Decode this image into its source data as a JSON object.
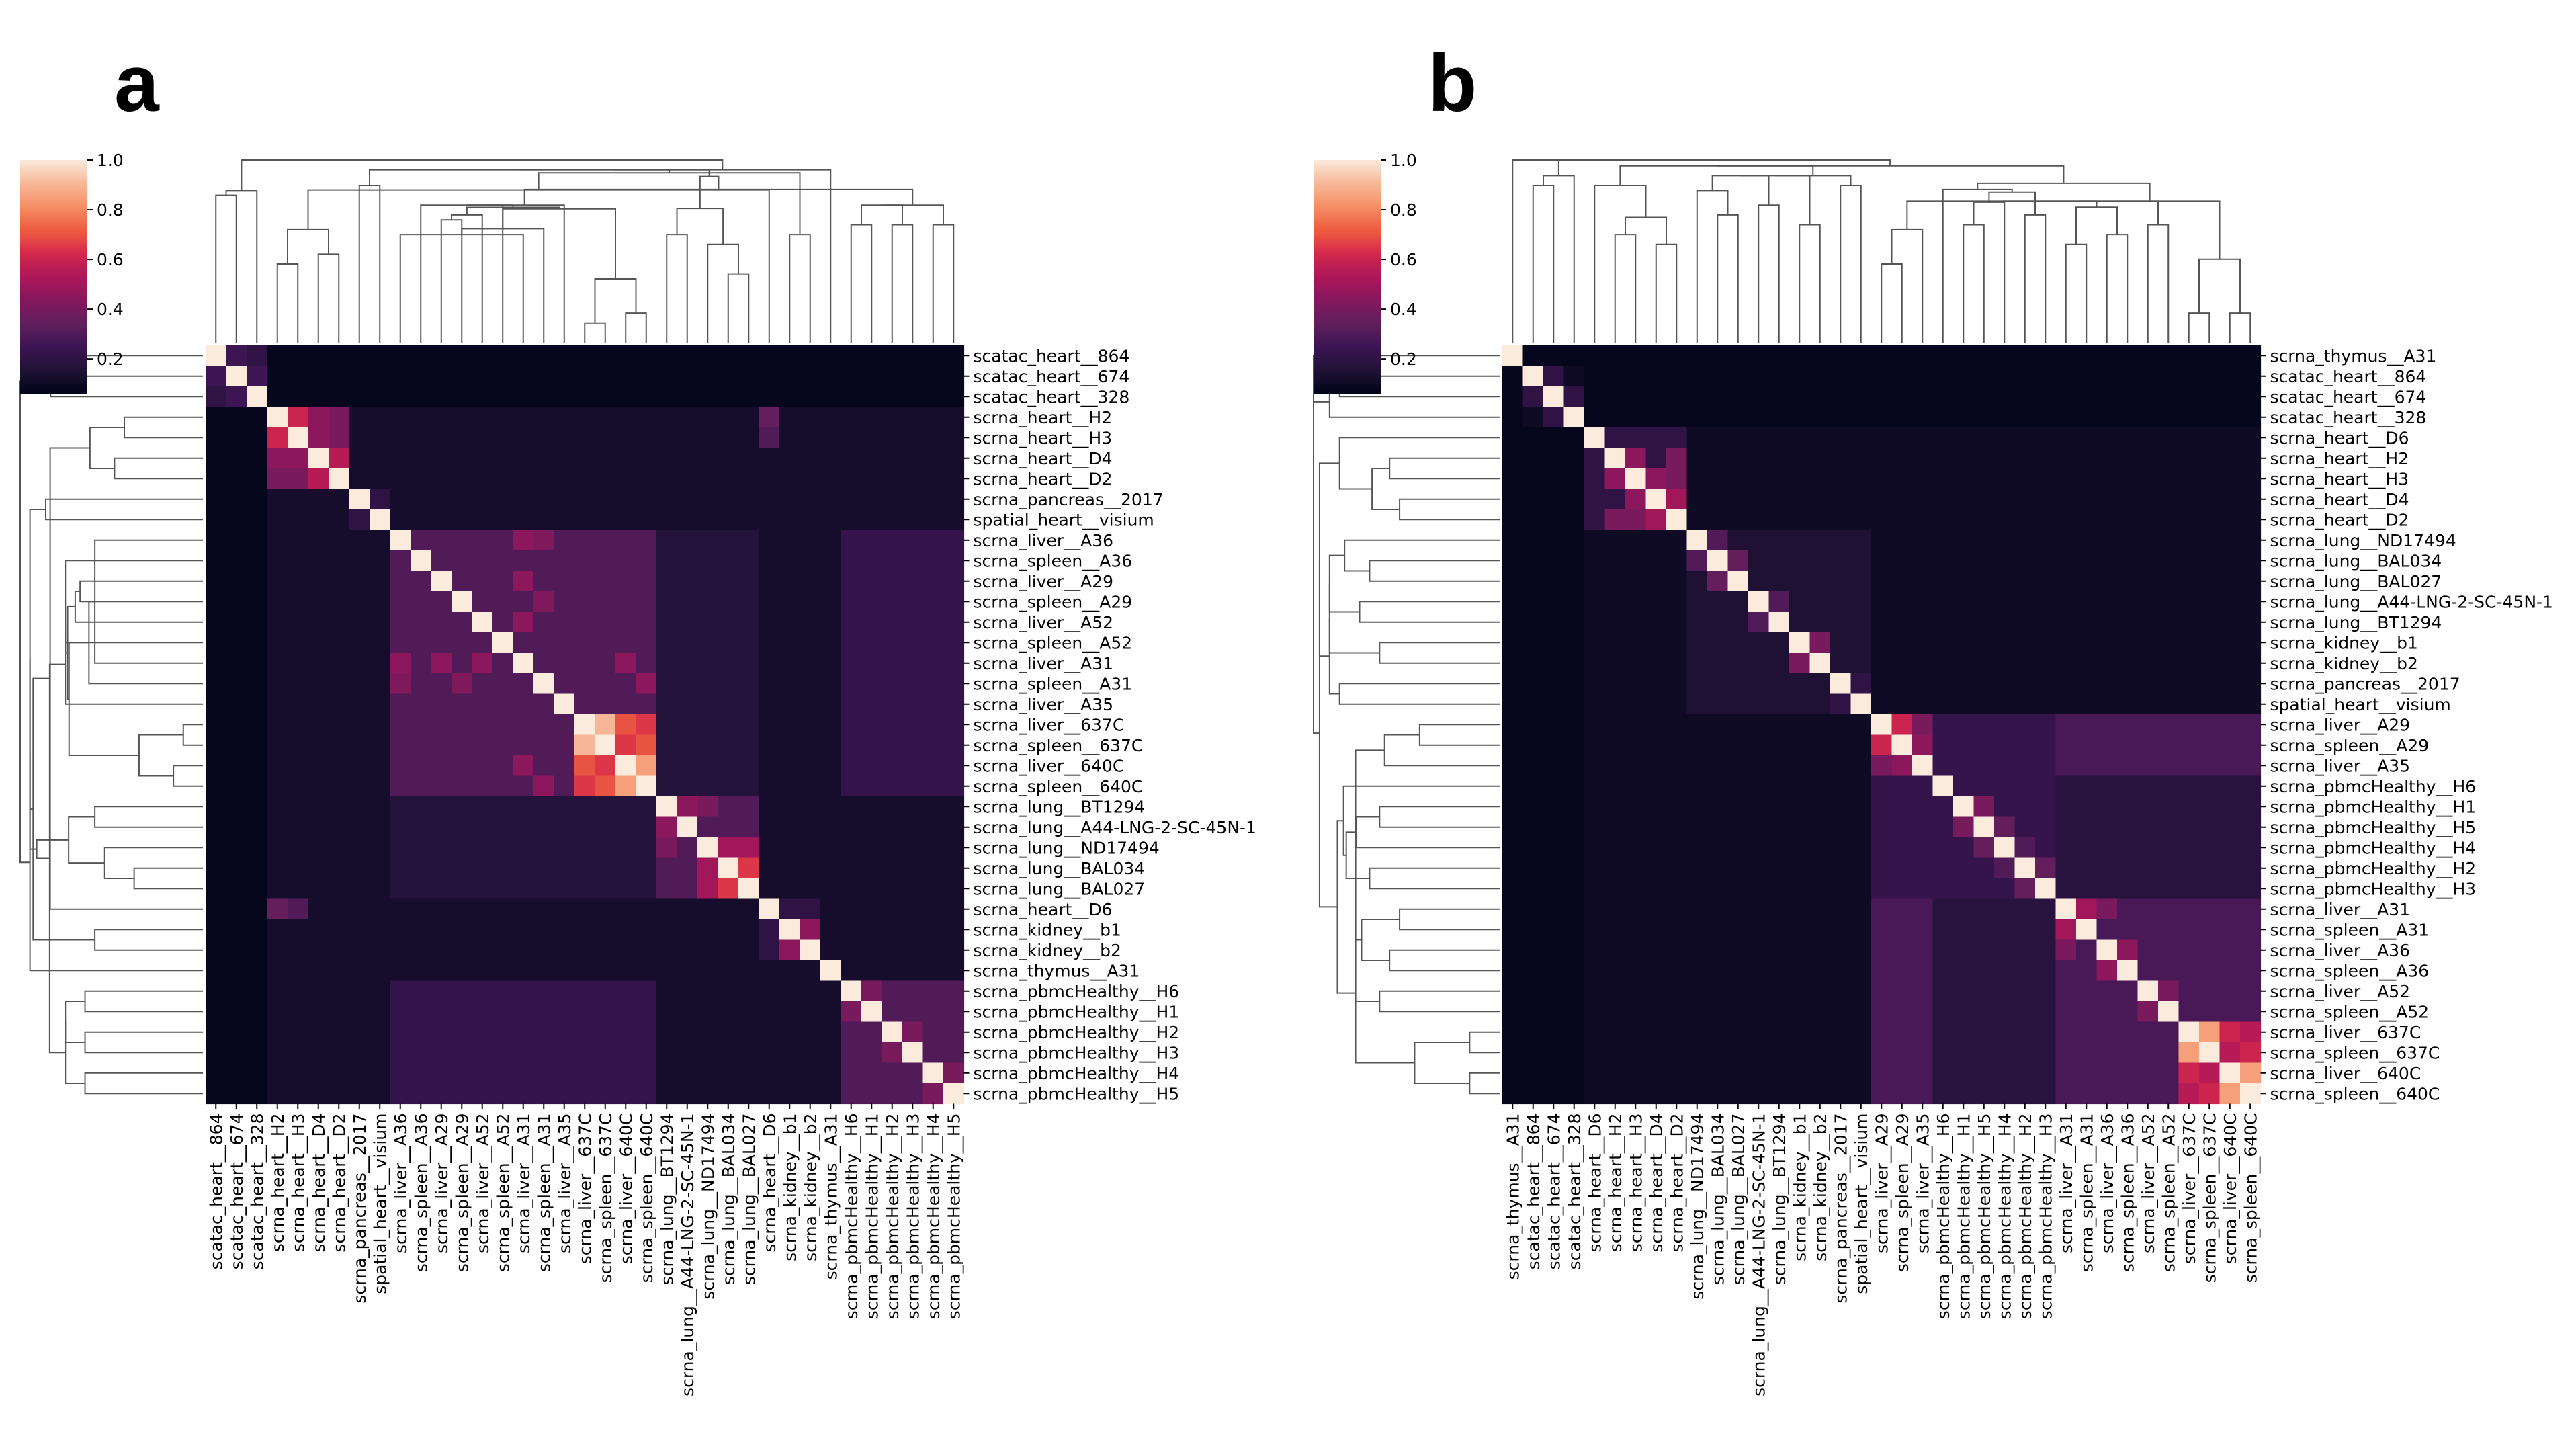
{
  "colormap": {
    "name": "rocket",
    "stops": [
      "#03051a",
      "#1f1235",
      "#3d1553",
      "#611f5c",
      "#86175c",
      "#ad1759",
      "#d5294b",
      "#ee5d3f",
      "#f58f66",
      "#f7b99a",
      "#faebdd"
    ]
  },
  "line_color": "#555555",
  "chart_data": [
    {
      "type": "heatmap",
      "panel_label": "a",
      "vmin": 0.06,
      "vmax": 1.0,
      "colorbar": {
        "ticks": [
          0.2,
          0.4,
          0.6,
          0.8,
          1.0
        ],
        "tick_labels": [
          "0.2",
          "0.4",
          "0.6",
          "0.8",
          "1.0"
        ]
      },
      "labels": [
        "scatac_heart__864",
        "scatac_heart__674",
        "scatac_heart__328",
        "scrna_heart__H2",
        "scrna_heart__H3",
        "scrna_heart__D4",
        "scrna_heart__D2",
        "scrna_pancreas__2017",
        "spatial_heart__visium",
        "scrna_liver__A36",
        "scrna_spleen__A36",
        "scrna_liver__A29",
        "scrna_spleen__A29",
        "scrna_liver__A52",
        "scrna_spleen__A52",
        "scrna_liver__A31",
        "scrna_spleen__A31",
        "scrna_liver__A35",
        "scrna_liver__637C",
        "scrna_spleen__637C",
        "scrna_liver__640C",
        "scrna_spleen__640C",
        "scrna_lung__BT1294",
        "scrna_lung__A44-LNG-2-SC-45N-1",
        "scrna_lung__ND17494",
        "scrna_lung__BAL034",
        "scrna_lung__BAL027",
        "scrna_heart__D6",
        "scrna_kidney__b1",
        "scrna_kidney__b2",
        "scrna_thymus__A31",
        "scrna_pbmcHealthy__H6",
        "scrna_pbmcHealthy__H1",
        "scrna_pbmcHealthy__H2",
        "scrna_pbmcHealthy__H3",
        "scrna_pbmcHealthy__H4",
        "scrna_pbmcHealthy__H5"
      ],
      "background": 0.12,
      "blocks": [
        {
          "rows": [
            0,
            2
          ],
          "value": 0.08
        },
        {
          "rows": [
            3,
            6
          ],
          "value": 0.22
        },
        {
          "rows": [
            7,
            8
          ],
          "value": 0.16
        },
        {
          "rows": [
            9,
            21
          ],
          "value": 0.3
        },
        {
          "rows": [
            22,
            26
          ],
          "value": 0.3
        },
        {
          "rows": [
            27,
            29
          ],
          "value": 0.2
        },
        {
          "rows": [
            31,
            36
          ],
          "value": 0.3
        },
        {
          "rows": [
            9,
            21
          ],
          "cols": [
            22,
            26
          ],
          "value": 0.17
        },
        {
          "rows": [
            9,
            21
          ],
          "cols": [
            31,
            36
          ],
          "value": 0.22
        },
        {
          "rows": [
            0,
            2
          ],
          "cols": [
            3,
            36
          ],
          "value": 0.07
        },
        {
          "rows": [
            3,
            6
          ],
          "cols": [
            9,
            36
          ],
          "value": 0.12
        }
      ],
      "pairs": [
        [
          0,
          1,
          0.25
        ],
        [
          1,
          2,
          0.25
        ],
        [
          0,
          2,
          0.2
        ],
        [
          3,
          4,
          0.6
        ],
        [
          3,
          5,
          0.45
        ],
        [
          4,
          5,
          0.45
        ],
        [
          5,
          6,
          0.55
        ],
        [
          3,
          6,
          0.4
        ],
        [
          4,
          6,
          0.4
        ],
        [
          3,
          27,
          0.35
        ],
        [
          4,
          27,
          0.3
        ],
        [
          7,
          8,
          0.2
        ],
        [
          9,
          15,
          0.45
        ],
        [
          11,
          15,
          0.45
        ],
        [
          13,
          15,
          0.45
        ],
        [
          9,
          16,
          0.42
        ],
        [
          12,
          16,
          0.42
        ],
        [
          18,
          19,
          0.9
        ],
        [
          18,
          20,
          0.7
        ],
        [
          19,
          21,
          0.7
        ],
        [
          20,
          21,
          0.85
        ],
        [
          18,
          21,
          0.65
        ],
        [
          19,
          20,
          0.65
        ],
        [
          15,
          20,
          0.45
        ],
        [
          16,
          21,
          0.45
        ],
        [
          22,
          23,
          0.45
        ],
        [
          22,
          24,
          0.4
        ],
        [
          24,
          25,
          0.5
        ],
        [
          25,
          26,
          0.65
        ],
        [
          24,
          26,
          0.5
        ],
        [
          28,
          29,
          0.45
        ],
        [
          31,
          32,
          0.4
        ],
        [
          33,
          34,
          0.4
        ],
        [
          35,
          36,
          0.4
        ]
      ]
    },
    {
      "type": "heatmap",
      "panel_label": "b",
      "vmin": 0.06,
      "vmax": 1.0,
      "colorbar": {
        "ticks": [
          0.2,
          0.4,
          0.6,
          0.8,
          1.0
        ],
        "tick_labels": [
          "0.2",
          "0.4",
          "0.6",
          "0.8",
          "1.0"
        ]
      },
      "labels": [
        "scrna_thymus__A31",
        "scatac_heart__864",
        "scatac_heart__674",
        "scatac_heart__328",
        "scrna_heart__D6",
        "scrna_heart__H2",
        "scrna_heart__H3",
        "scrna_heart__D4",
        "scrna_heart__D2",
        "scrna_lung__ND17494",
        "scrna_lung__BAL034",
        "scrna_lung__BAL027",
        "scrna_lung__A44-LNG-2-SC-45N-1",
        "scrna_lung__BT1294",
        "scrna_kidney__b1",
        "scrna_kidney__b2",
        "scrna_pancreas__2017",
        "spatial_heart__visium",
        "scrna_liver__A29",
        "scrna_spleen__A29",
        "scrna_liver__A35",
        "scrna_pbmcHealthy__H6",
        "scrna_pbmcHealthy__H1",
        "scrna_pbmcHealthy__H5",
        "scrna_pbmcHealthy__H4",
        "scrna_pbmcHealthy__H2",
        "scrna_pbmcHealthy__H3",
        "scrna_liver__A31",
        "scrna_spleen__A31",
        "scrna_liver__A36",
        "scrna_spleen__A36",
        "scrna_liver__A52",
        "scrna_spleen__A52",
        "scrna_liver__637C",
        "scrna_spleen__637C",
        "scrna_liver__640C",
        "scrna_spleen__640C"
      ],
      "background": 0.1,
      "blocks": [
        {
          "rows": [
            0,
            3
          ],
          "cols": [
            0,
            36
          ],
          "value": 0.07
        },
        {
          "rows": [
            1,
            3
          ],
          "value": 0.1
        },
        {
          "rows": [
            4,
            8
          ],
          "value": 0.2
        },
        {
          "rows": [
            9,
            17
          ],
          "value": 0.15
        },
        {
          "rows": [
            18,
            36
          ],
          "value": 0.22
        },
        {
          "rows": [
            18,
            20
          ],
          "cols": [
            27,
            36
          ],
          "value": 0.28
        },
        {
          "rows": [
            21,
            26
          ],
          "cols": [
            27,
            36
          ],
          "value": 0.18
        },
        {
          "rows": [
            27,
            36
          ],
          "value": 0.28
        }
      ],
      "pairs": [
        [
          1,
          2,
          0.2
        ],
        [
          2,
          3,
          0.2
        ],
        [
          5,
          6,
          0.45
        ],
        [
          6,
          7,
          0.45
        ],
        [
          7,
          8,
          0.5
        ],
        [
          5,
          8,
          0.4
        ],
        [
          6,
          8,
          0.4
        ],
        [
          9,
          10,
          0.3
        ],
        [
          10,
          11,
          0.35
        ],
        [
          12,
          13,
          0.3
        ],
        [
          14,
          15,
          0.4
        ],
        [
          16,
          17,
          0.2
        ],
        [
          18,
          19,
          0.6
        ],
        [
          19,
          20,
          0.45
        ],
        [
          18,
          20,
          0.4
        ],
        [
          22,
          23,
          0.4
        ],
        [
          23,
          24,
          0.35
        ],
        [
          25,
          26,
          0.35
        ],
        [
          24,
          25,
          0.3
        ],
        [
          27,
          28,
          0.5
        ],
        [
          29,
          30,
          0.45
        ],
        [
          31,
          32,
          0.4
        ],
        [
          27,
          29,
          0.4
        ],
        [
          33,
          34,
          0.85
        ],
        [
          35,
          36,
          0.85
        ],
        [
          33,
          35,
          0.6
        ],
        [
          34,
          36,
          0.6
        ],
        [
          33,
          36,
          0.55
        ],
        [
          34,
          35,
          0.55
        ]
      ]
    }
  ]
}
